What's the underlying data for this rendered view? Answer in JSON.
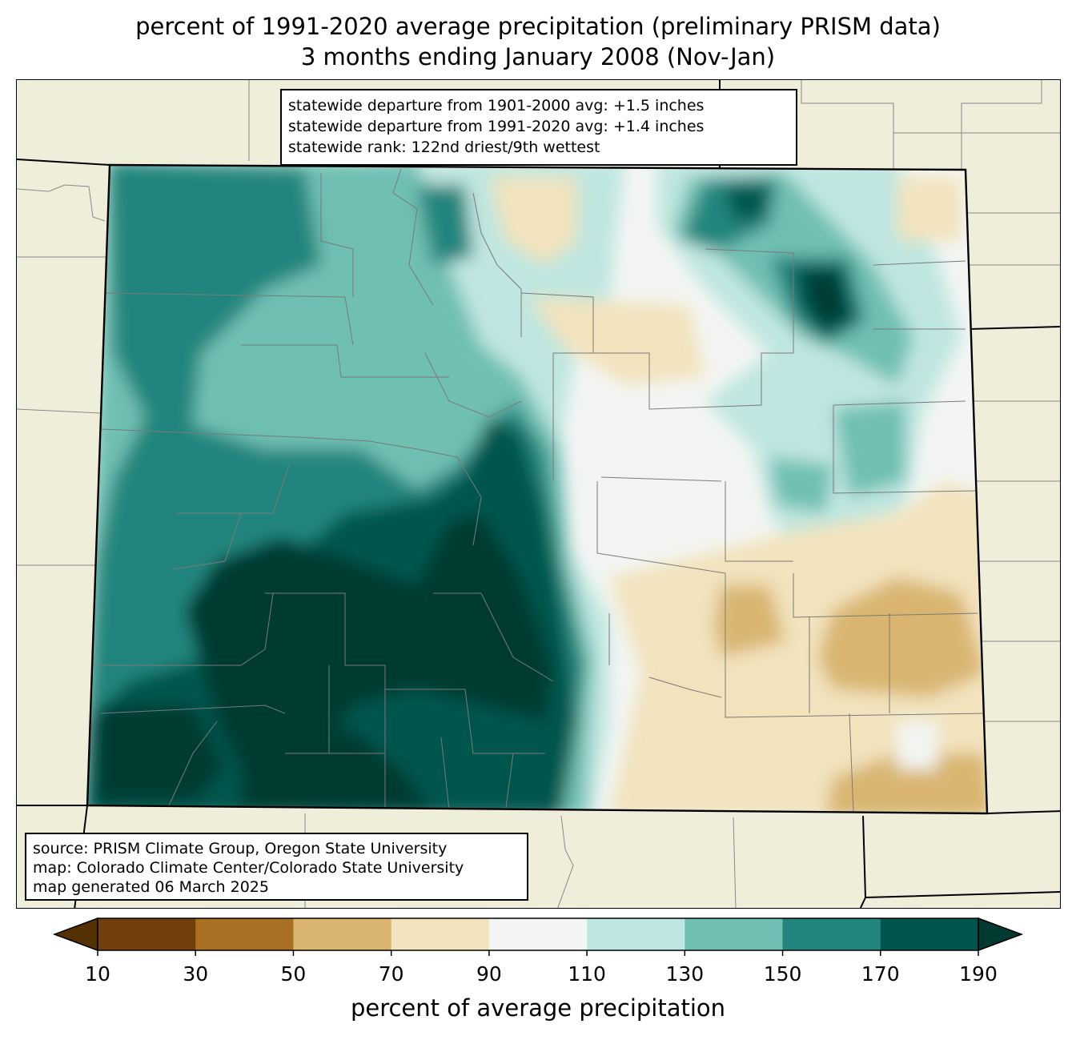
{
  "title": {
    "line1": "percent of 1991-2020 average precipitation (preliminary PRISM data)",
    "line2": "3 months ending January 2008 (Nov-Jan)"
  },
  "stats": {
    "line1": "statewide departure from 1901-2000 avg: +1.5 inches",
    "line2": "statewide departure from 1991-2020 avg: +1.4 inches",
    "line3": "statewide rank: 122nd driest/9th wettest"
  },
  "source": {
    "line1": "source: PRISM Climate Group, Oregon State University",
    "line2": "map: Colorado Climate Center/Colorado State University",
    "line3": "map generated 06 March 2025"
  },
  "colorbar": {
    "label": "percent of average precipitation",
    "ticks": [
      "10",
      "30",
      "50",
      "70",
      "90",
      "110",
      "130",
      "150",
      "170",
      "190"
    ],
    "colors": [
      "#543005",
      "#8c510a",
      "#bf812d",
      "#dfc27d",
      "#f6e8c3",
      "#f5f5f5",
      "#c7eae5",
      "#80cdc1",
      "#35978f",
      "#01665e",
      "#003c30"
    ],
    "bins": [
      {
        "range": "<10",
        "color": "#543005"
      },
      {
        "range": "10-30",
        "color": "#713f0b"
      },
      {
        "range": "30-50",
        "color": "#a96f24"
      },
      {
        "range": "50-70",
        "color": "#d9b56f"
      },
      {
        "range": "70-90",
        "color": "#f2e3bd"
      },
      {
        "range": "90-110",
        "color": "#f3f5f3"
      },
      {
        "range": "110-130",
        "color": "#bfe6e0"
      },
      {
        "range": "130-150",
        "color": "#6fbfb3"
      },
      {
        "range": "150-170",
        "color": "#23857d"
      },
      {
        "range": "170-190",
        "color": "#00564d"
      },
      {
        "range": ">190",
        "color": "#003a31"
      }
    ]
  },
  "map": {
    "land_color": "#efeedb",
    "region": "Colorado",
    "pattern": {
      "wet_west_mountains": "150-190+",
      "northeast_plains_spot": "170-190",
      "southeast_plains": "50-90",
      "front_range_corridor": "90-110"
    }
  }
}
